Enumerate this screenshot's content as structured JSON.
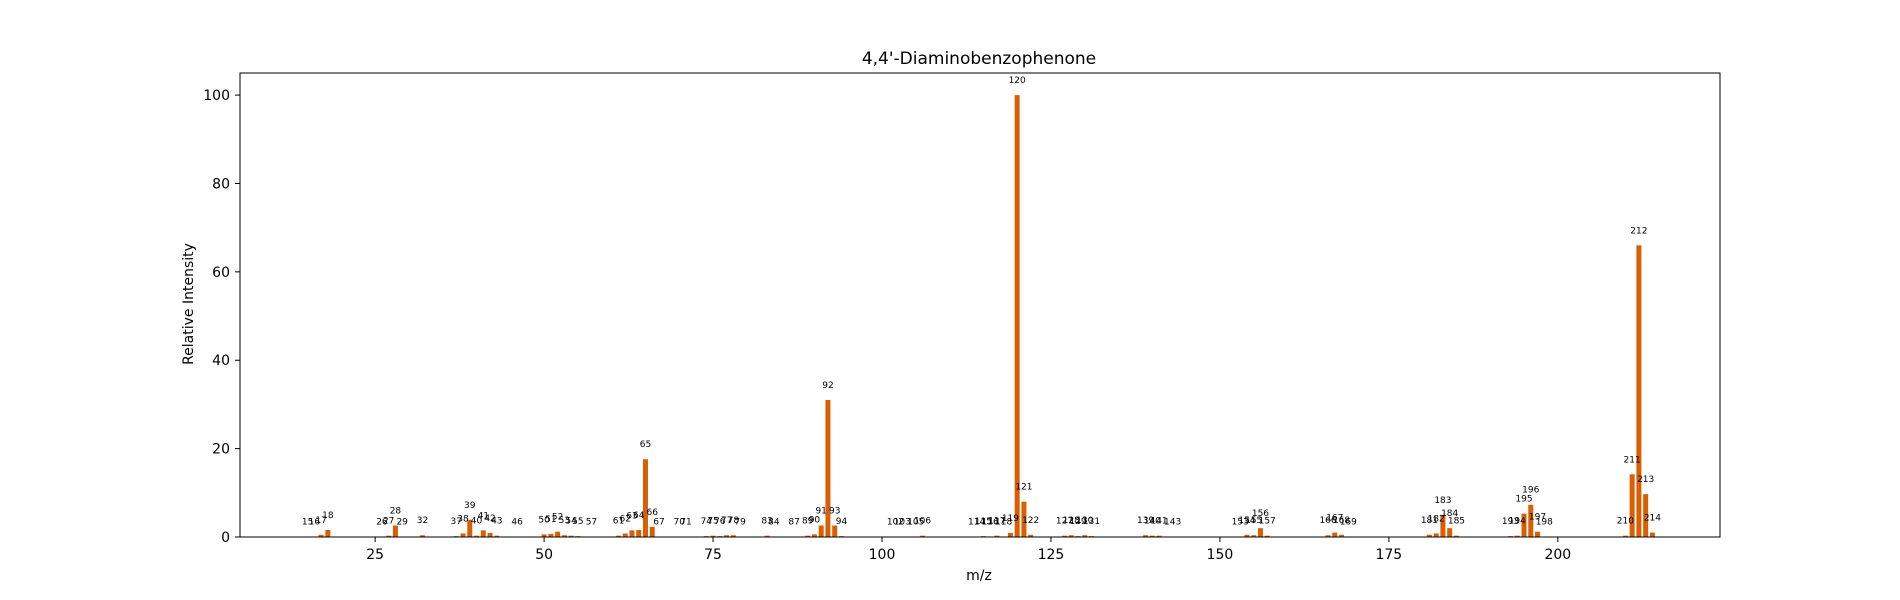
{
  "chart_data": {
    "type": "bar",
    "title": "4,4'-Diaminobenzophenone",
    "xlabel": "m/z",
    "ylabel": "Relative Intensity",
    "xlim": [
      5,
      224
    ],
    "ylim": [
      0,
      105
    ],
    "xticks": [
      25,
      50,
      75,
      100,
      125,
      150,
      175,
      200
    ],
    "yticks": [
      0,
      20,
      40,
      60,
      80,
      100
    ],
    "grid": false,
    "bar_color": "#d95f02",
    "peaks": [
      {
        "mz": 15,
        "intensity": 0.1
      },
      {
        "mz": 16,
        "intensity": 0.1
      },
      {
        "mz": 17,
        "intensity": 0.5
      },
      {
        "mz": 18,
        "intensity": 1.6
      },
      {
        "mz": 26,
        "intensity": 0.1
      },
      {
        "mz": 27,
        "intensity": 0.3
      },
      {
        "mz": 28,
        "intensity": 2.6
      },
      {
        "mz": 29,
        "intensity": 0.1
      },
      {
        "mz": 32,
        "intensity": 0.4
      },
      {
        "mz": 37,
        "intensity": 0.2
      },
      {
        "mz": 38,
        "intensity": 0.8
      },
      {
        "mz": 39,
        "intensity": 3.9
      },
      {
        "mz": 40,
        "intensity": 0.3
      },
      {
        "mz": 41,
        "intensity": 1.5
      },
      {
        "mz": 42,
        "intensity": 0.9
      },
      {
        "mz": 43,
        "intensity": 0.3
      },
      {
        "mz": 46,
        "intensity": 0.1
      },
      {
        "mz": 50,
        "intensity": 0.6
      },
      {
        "mz": 51,
        "intensity": 0.7
      },
      {
        "mz": 52,
        "intensity": 1.2
      },
      {
        "mz": 53,
        "intensity": 0.4
      },
      {
        "mz": 54,
        "intensity": 0.3
      },
      {
        "mz": 55,
        "intensity": 0.2
      },
      {
        "mz": 57,
        "intensity": 0.1
      },
      {
        "mz": 61,
        "intensity": 0.3
      },
      {
        "mz": 62,
        "intensity": 0.8
      },
      {
        "mz": 63,
        "intensity": 1.5
      },
      {
        "mz": 64,
        "intensity": 1.6
      },
      {
        "mz": 65,
        "intensity": 17.6
      },
      {
        "mz": 66,
        "intensity": 2.3
      },
      {
        "mz": 67,
        "intensity": 0.1
      },
      {
        "mz": 70,
        "intensity": 0.1
      },
      {
        "mz": 71,
        "intensity": 0.1
      },
      {
        "mz": 74,
        "intensity": 0.2
      },
      {
        "mz": 75,
        "intensity": 0.3
      },
      {
        "mz": 76,
        "intensity": 0.2
      },
      {
        "mz": 77,
        "intensity": 0.4
      },
      {
        "mz": 78,
        "intensity": 0.4
      },
      {
        "mz": 79,
        "intensity": 0.1
      },
      {
        "mz": 83,
        "intensity": 0.3
      },
      {
        "mz": 84,
        "intensity": 0.1
      },
      {
        "mz": 87,
        "intensity": 0.1
      },
      {
        "mz": 89,
        "intensity": 0.3
      },
      {
        "mz": 90,
        "intensity": 0.6
      },
      {
        "mz": 91,
        "intensity": 2.6
      },
      {
        "mz": 92,
        "intensity": 31.0
      },
      {
        "mz": 93,
        "intensity": 2.6
      },
      {
        "mz": 94,
        "intensity": 0.2
      },
      {
        "mz": 102,
        "intensity": 0.1
      },
      {
        "mz": 103,
        "intensity": 0.1
      },
      {
        "mz": 105,
        "intensity": 0.1
      },
      {
        "mz": 106,
        "intensity": 0.3
      },
      {
        "mz": 114,
        "intensity": 0.1
      },
      {
        "mz": 115,
        "intensity": 0.2
      },
      {
        "mz": 116,
        "intensity": 0.1
      },
      {
        "mz": 117,
        "intensity": 0.3
      },
      {
        "mz": 118,
        "intensity": 0.1
      },
      {
        "mz": 119,
        "intensity": 0.9
      },
      {
        "mz": 120,
        "intensity": 100.0
      },
      {
        "mz": 121,
        "intensity": 8.0
      },
      {
        "mz": 122,
        "intensity": 0.5
      },
      {
        "mz": 127,
        "intensity": 0.3
      },
      {
        "mz": 128,
        "intensity": 0.4
      },
      {
        "mz": 129,
        "intensity": 0.2
      },
      {
        "mz": 130,
        "intensity": 0.4
      },
      {
        "mz": 131,
        "intensity": 0.2
      },
      {
        "mz": 139,
        "intensity": 0.4
      },
      {
        "mz": 140,
        "intensity": 0.3
      },
      {
        "mz": 141,
        "intensity": 0.3
      },
      {
        "mz": 143,
        "intensity": 0.1
      },
      {
        "mz": 153,
        "intensity": 0.1
      },
      {
        "mz": 154,
        "intensity": 0.5
      },
      {
        "mz": 155,
        "intensity": 0.4
      },
      {
        "mz": 156,
        "intensity": 2.0
      },
      {
        "mz": 157,
        "intensity": 0.3
      },
      {
        "mz": 166,
        "intensity": 0.4
      },
      {
        "mz": 167,
        "intensity": 1.0
      },
      {
        "mz": 168,
        "intensity": 0.5
      },
      {
        "mz": 169,
        "intensity": 0.1
      },
      {
        "mz": 181,
        "intensity": 0.5
      },
      {
        "mz": 182,
        "intensity": 0.8
      },
      {
        "mz": 183,
        "intensity": 5.0
      },
      {
        "mz": 184,
        "intensity": 2.0
      },
      {
        "mz": 185,
        "intensity": 0.3
      },
      {
        "mz": 193,
        "intensity": 0.2
      },
      {
        "mz": 194,
        "intensity": 0.3
      },
      {
        "mz": 195,
        "intensity": 5.3
      },
      {
        "mz": 196,
        "intensity": 7.3
      },
      {
        "mz": 197,
        "intensity": 1.2
      },
      {
        "mz": 198,
        "intensity": 0.1
      },
      {
        "mz": 210,
        "intensity": 0.3
      },
      {
        "mz": 211,
        "intensity": 14.2
      },
      {
        "mz": 212,
        "intensity": 66.0
      },
      {
        "mz": 213,
        "intensity": 9.7
      },
      {
        "mz": 214,
        "intensity": 1.0
      }
    ]
  }
}
